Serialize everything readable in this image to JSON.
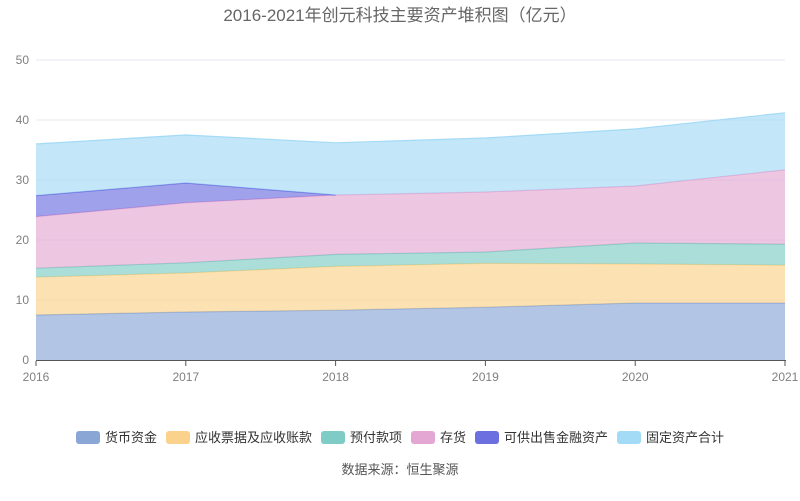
{
  "title": "2016-2021年创元科技主要资产堆积图（亿元）",
  "source_note": "数据来源：恒生聚源",
  "style": {
    "background": "#FFFFFF",
    "title_color": "#666666",
    "axis_line_color": "#555555",
    "axis_label_color": "#808080",
    "grid_color": "#E4E8F0",
    "legend_text_color": "#333333",
    "source_color": "#555555"
  },
  "chart_data": {
    "type": "area",
    "stacked": true,
    "title": "2016-2021年创元科技主要资产堆积图（亿元）",
    "x": [
      "2016",
      "2017",
      "2018",
      "2019",
      "2020",
      "2021"
    ],
    "series": [
      {
        "name": "货币资金",
        "color": "#89A6D5",
        "values": [
          7.5,
          8.0,
          8.3,
          8.8,
          9.5,
          9.5
        ]
      },
      {
        "name": "应收票据及应收账款",
        "color": "#FAD28B",
        "values": [
          6.3,
          6.5,
          7.3,
          7.3,
          6.5,
          6.3
        ]
      },
      {
        "name": "预付款项",
        "color": "#7ECCC5",
        "values": [
          1.5,
          1.7,
          2.0,
          1.9,
          3.5,
          3.5
        ]
      },
      {
        "name": "存货",
        "color": "#E4A7D3",
        "values": [
          8.6,
          10.0,
          9.9,
          10.0,
          9.5,
          12.4
        ]
      },
      {
        "name": "可供出售金融资产",
        "color": "#6C6FE0",
        "values": [
          3.5,
          3.3,
          0,
          0,
          0,
          0
        ]
      },
      {
        "name": "固定资产合计",
        "color": "#A3DAF6",
        "values": [
          8.6,
          8.0,
          8.7,
          9.0,
          9.5,
          9.5
        ]
      }
    ],
    "totals": [
      36.0,
      37.5,
      36.2,
      37.0,
      38.5,
      41.2
    ],
    "xlabel": "",
    "ylabel": "",
    "ylim": [
      0,
      50
    ],
    "yticks": [
      0,
      10,
      20,
      30,
      40,
      50
    ],
    "grid": true,
    "legend_position": "bottom",
    "fill_opacity": 0.65
  }
}
